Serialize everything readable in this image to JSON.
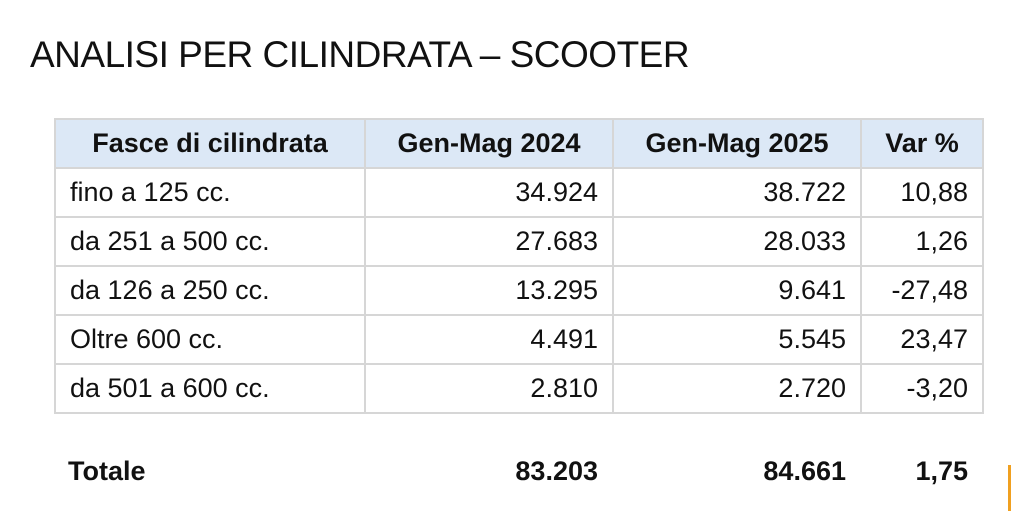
{
  "title": "ANALISI PER CILINDRATA – SCOOTER",
  "table": {
    "header": [
      "Fasce di cilindrata",
      "Gen-Mag 2024",
      "Gen-Mag 2025",
      "Var %"
    ],
    "rows": [
      [
        "fino a 125 cc.",
        "34.924",
        "38.722",
        "10,88"
      ],
      [
        "da 251 a 500 cc.",
        "27.683",
        "28.033",
        "1,26"
      ],
      [
        "da 126 a 250 cc.",
        "13.295",
        "9.641",
        "-27,48"
      ],
      [
        "Oltre 600 cc.",
        "4.491",
        "5.545",
        "23,47"
      ],
      [
        "da 501 a 600 cc.",
        "2.810",
        "2.720",
        "-3,20"
      ]
    ],
    "total": [
      "Totale",
      "83.203",
      "84.661",
      "1,75"
    ]
  }
}
